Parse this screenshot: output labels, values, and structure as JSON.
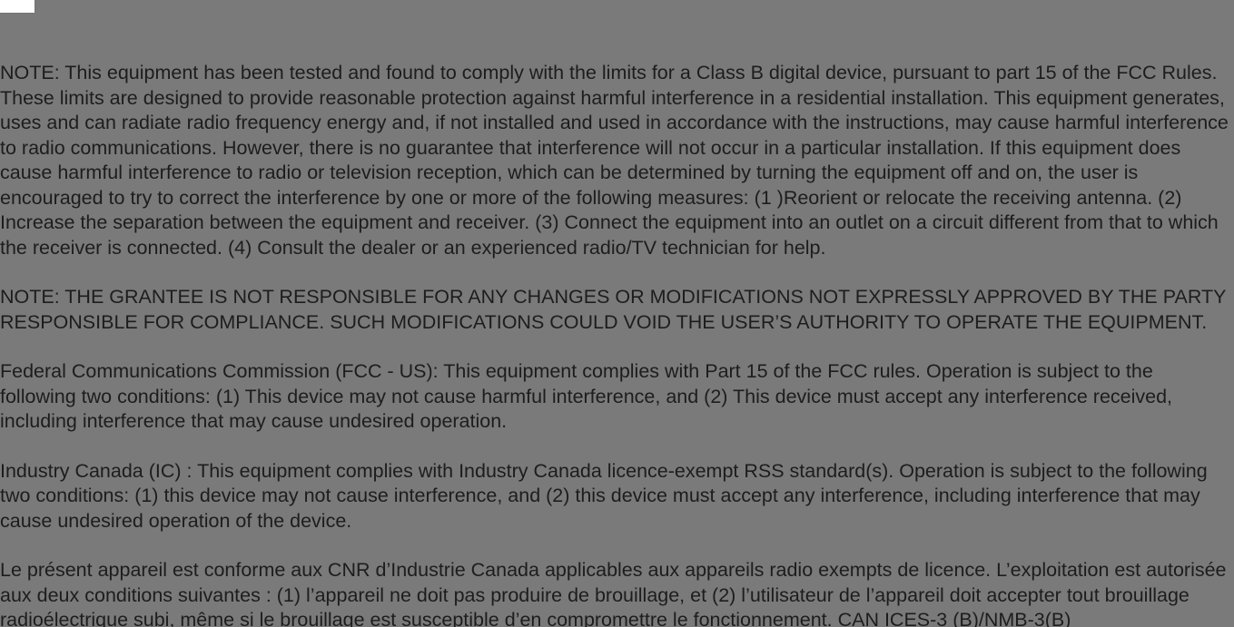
{
  "colors": {
    "pageBackground": "#7a7a7a",
    "textColor": "#1d1d1d",
    "topMarkerBackground": "#ffffff"
  },
  "typography": {
    "fontFamily": "Segoe UI, Tahoma, Verdana, sans-serif",
    "fontSizePx": 21.5,
    "lineHeight": 1.28
  },
  "paragraphs": {
    "p1": "NOTE: This equipment has been tested and found to comply with the limits for a Class B digital device, pursuant to part 15 of the FCC Rules. These limits are designed to provide reasonable protection against harmful interference in a residential installation. This equipment generates, uses and can radiate radio frequency energy and, if not installed and used in accordance with the instructions, may cause harmful interference to radio communications. However, there is no guarantee that interference will not occur in a particular installation. If this equipment does cause harmful interference to radio or television reception, which can be determined by turning the equipment off and on, the user is encouraged to try to correct the interference by one or more of the following measures: (1 )Reorient or relocate the receiving antenna. (2) Increase the separation between the equipment and receiver. (3) Connect the equipment into an outlet on a circuit different from that to which the receiver is connected. (4) Consult the dealer or an experienced radio/TV technician for help.",
    "p2": "NOTE: THE GRANTEE IS NOT RESPONSIBLE FOR ANY CHANGES OR MODIFICATIONS NOT EXPRESSLY APPROVED BY THE PARTY RESPONSIBLE FOR COMPLIANCE. SUCH MODIFICATIONS COULD VOID THE USER’S AUTHORITY TO OPERATE THE EQUIPMENT.",
    "p3": "Federal Communications Commission (FCC - US): This equipment complies with Part 15 of the FCC rules. Operation is subject to the following two conditions: (1) This device may not cause harmful interference, and (2) This device must accept any interference received, including interference that may cause undesired operation.",
    "p4": "Industry Canada (IC) : This equipment complies with Industry Canada licence-exempt RSS standard(s). Operation is subject to the following two conditions: (1) this device may not cause interference, and (2) this device must accept any interference, including interference that may cause undesired operation of the device.",
    "p5": "Le présent appareil est conforme aux CNR d’Industrie Canada applicables aux appareils radio exempts de licence. L’exploitation est autorisée aux deux conditions suivantes : (1) l’appareil ne doit pas produire de brouillage, et (2) l’utilisateur de l’appareil doit accepter tout brouillage radioélectrique subi, même si le brouillage est susceptible d’en compromettre le fonctionnement. CAN ICES-3 (B)/NMB-3(B)"
  }
}
